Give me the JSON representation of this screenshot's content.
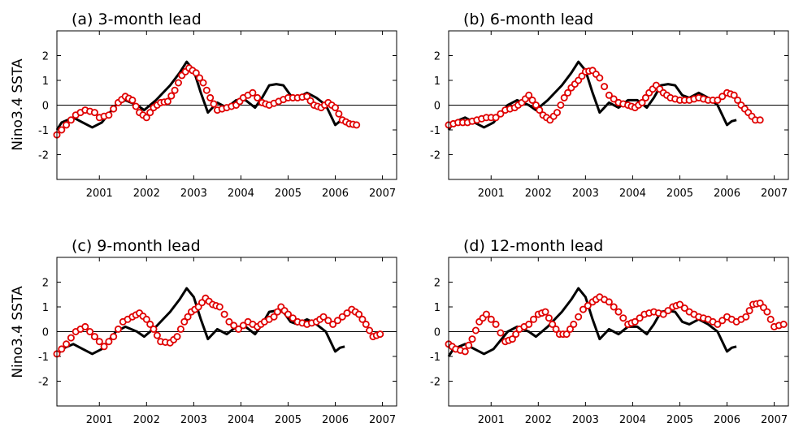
{
  "y_axis_label": "Nino3.4  SSTA",
  "colors": {
    "obs": "#000000",
    "pred": "#e00000"
  },
  "chart_data": [
    {
      "type": "line",
      "title": "(a) 3-month lead",
      "xlim": [
        2000.1,
        2007.3
      ],
      "ylim": [
        -3,
        3
      ],
      "xticks": [
        2001,
        2002,
        2003,
        2004,
        2005,
        2006,
        2007
      ],
      "xtick_labels": [
        "2001",
        "2002",
        "2003",
        "2004",
        "2005",
        "2006",
        "2007"
      ],
      "yticks": [
        -2,
        -1,
        0,
        1,
        2
      ],
      "ytick_labels": [
        "-2",
        "-1",
        "0",
        "1",
        "2"
      ],
      "observed": {
        "x": [
          2000.1,
          2000.2,
          2000.45,
          2000.65,
          2000.85,
          2001.05,
          2001.35,
          2001.55,
          2001.8,
          2001.95,
          2002.2,
          2002.5,
          2002.7,
          2002.85,
          2003.0,
          2003.15,
          2003.3,
          2003.5,
          2003.7,
          2003.9,
          2004.1,
          2004.3,
          2004.45,
          2004.6,
          2004.75,
          2004.9,
          2005.05,
          2005.2,
          2005.4,
          2005.6,
          2005.8,
          2006.0,
          2006.1,
          2006.2
        ],
        "y": [
          -1.0,
          -0.7,
          -0.5,
          -0.7,
          -0.9,
          -0.7,
          0.0,
          0.2,
          0.0,
          -0.2,
          0.2,
          0.8,
          1.3,
          1.75,
          1.4,
          0.5,
          -0.3,
          0.1,
          -0.1,
          0.2,
          0.2,
          -0.1,
          0.3,
          0.8,
          0.85,
          0.8,
          0.4,
          0.3,
          0.5,
          0.3,
          0.0,
          -0.8,
          -0.65,
          -0.6
        ]
      },
      "predicted": {
        "x": [
          2000.1,
          2000.3,
          2000.5,
          2000.7,
          2000.9,
          2001.0,
          2001.2,
          2001.4,
          2001.55,
          2001.7,
          2001.85,
          2002.0,
          2002.15,
          2002.3,
          2002.45,
          2002.6,
          2002.75,
          2002.9,
          2003.05,
          2003.2,
          2003.35,
          2003.5,
          2003.7,
          2003.9,
          2004.05,
          2004.25,
          2004.45,
          2004.6,
          2004.8,
          2005.0,
          2005.2,
          2005.4,
          2005.55,
          2005.7,
          2005.85,
          2006.0,
          2006.15,
          2006.3,
          2006.45
        ],
        "y": [
          -1.2,
          -0.8,
          -0.4,
          -0.2,
          -0.3,
          -0.5,
          -0.4,
          0.1,
          0.35,
          0.2,
          -0.3,
          -0.5,
          -0.1,
          0.1,
          0.15,
          0.6,
          1.2,
          1.5,
          1.3,
          0.9,
          0.3,
          -0.2,
          -0.1,
          0.0,
          0.3,
          0.5,
          0.1,
          0.0,
          0.15,
          0.3,
          0.3,
          0.35,
          0.0,
          -0.1,
          0.1,
          -0.1,
          -0.6,
          -0.75,
          -0.8
        ]
      }
    },
    {
      "type": "line",
      "title": "(b) 6-month lead",
      "xlim": [
        2000.1,
        2007.3
      ],
      "ylim": [
        -3,
        3
      ],
      "xticks": [
        2001,
        2002,
        2003,
        2004,
        2005,
        2006,
        2007
      ],
      "xtick_labels": [
        "2001",
        "2002",
        "2003",
        "2004",
        "2005",
        "2006",
        "2007"
      ],
      "yticks": [
        -2,
        -1,
        0,
        1,
        2
      ],
      "ytick_labels": [
        "-2",
        "-1",
        "0",
        "1",
        "2"
      ],
      "observed": {
        "x": [
          2000.1,
          2000.2,
          2000.45,
          2000.65,
          2000.85,
          2001.05,
          2001.35,
          2001.55,
          2001.8,
          2001.95,
          2002.2,
          2002.5,
          2002.7,
          2002.85,
          2003.0,
          2003.15,
          2003.3,
          2003.5,
          2003.7,
          2003.9,
          2004.1,
          2004.3,
          2004.45,
          2004.6,
          2004.75,
          2004.9,
          2005.05,
          2005.2,
          2005.4,
          2005.6,
          2005.8,
          2006.0,
          2006.1,
          2006.2
        ],
        "y": [
          -1.0,
          -0.7,
          -0.5,
          -0.7,
          -0.9,
          -0.7,
          0.0,
          0.2,
          0.0,
          -0.2,
          0.2,
          0.8,
          1.3,
          1.75,
          1.4,
          0.5,
          -0.3,
          0.1,
          -0.1,
          0.2,
          0.2,
          -0.1,
          0.3,
          0.8,
          0.85,
          0.8,
          0.4,
          0.3,
          0.5,
          0.3,
          0.0,
          -0.8,
          -0.65,
          -0.6
        ]
      },
      "predicted": {
        "x": [
          2000.1,
          2000.3,
          2000.5,
          2000.7,
          2000.9,
          2001.1,
          2001.3,
          2001.5,
          2001.65,
          2001.8,
          2001.95,
          2002.1,
          2002.25,
          2002.4,
          2002.55,
          2002.7,
          2002.85,
          2003.0,
          2003.15,
          2003.3,
          2003.5,
          2003.7,
          2003.9,
          2004.05,
          2004.2,
          2004.35,
          2004.5,
          2004.65,
          2004.8,
          2005.0,
          2005.2,
          2005.4,
          2005.6,
          2005.8,
          2006.0,
          2006.15,
          2006.3,
          2006.45,
          2006.6,
          2006.7
        ],
        "y": [
          -0.8,
          -0.7,
          -0.7,
          -0.6,
          -0.5,
          -0.5,
          -0.2,
          -0.1,
          0.1,
          0.4,
          0.0,
          -0.4,
          -0.6,
          -0.3,
          0.3,
          0.7,
          1.0,
          1.35,
          1.4,
          1.1,
          0.4,
          0.1,
          0.0,
          -0.1,
          0.1,
          0.5,
          0.8,
          0.5,
          0.3,
          0.2,
          0.2,
          0.3,
          0.2,
          0.2,
          0.5,
          0.4,
          0.0,
          -0.3,
          -0.6,
          -0.6
        ]
      }
    },
    {
      "type": "line",
      "title": "(c) 9-month lead",
      "xlim": [
        2000.1,
        2007.3
      ],
      "ylim": [
        -3,
        3
      ],
      "xticks": [
        2001,
        2002,
        2003,
        2004,
        2005,
        2006,
        2007
      ],
      "xtick_labels": [
        "2001",
        "2002",
        "2003",
        "2004",
        "2005",
        "2006",
        "2007"
      ],
      "yticks": [
        -2,
        -1,
        0,
        1,
        2
      ],
      "ytick_labels": [
        "-2",
        "-1",
        "0",
        "1",
        "2"
      ],
      "observed": {
        "x": [
          2000.1,
          2000.2,
          2000.45,
          2000.65,
          2000.85,
          2001.05,
          2001.35,
          2001.55,
          2001.8,
          2001.95,
          2002.2,
          2002.5,
          2002.7,
          2002.85,
          2003.0,
          2003.15,
          2003.3,
          2003.5,
          2003.7,
          2003.9,
          2004.1,
          2004.3,
          2004.45,
          2004.6,
          2004.75,
          2004.9,
          2005.05,
          2005.2,
          2005.4,
          2005.6,
          2005.8,
          2006.0,
          2006.1,
          2006.2
        ],
        "y": [
          -1.0,
          -0.7,
          -0.5,
          -0.7,
          -0.9,
          -0.7,
          0.0,
          0.2,
          0.0,
          -0.2,
          0.2,
          0.8,
          1.3,
          1.75,
          1.4,
          0.5,
          -0.3,
          0.1,
          -0.1,
          0.2,
          0.2,
          -0.1,
          0.3,
          0.8,
          0.85,
          0.8,
          0.4,
          0.3,
          0.5,
          0.3,
          0.0,
          -0.8,
          -0.65,
          -0.6
        ]
      },
      "predicted": {
        "x": [
          2000.1,
          2000.3,
          2000.5,
          2000.7,
          2000.9,
          2001.1,
          2001.3,
          2001.5,
          2001.7,
          2001.85,
          2002.0,
          2002.15,
          2002.3,
          2002.5,
          2002.65,
          2002.8,
          2002.95,
          2003.1,
          2003.25,
          2003.4,
          2003.55,
          2003.75,
          2003.95,
          2004.15,
          2004.35,
          2004.5,
          2004.7,
          2004.85,
          2005.0,
          2005.2,
          2005.4,
          2005.6,
          2005.75,
          2005.95,
          2006.15,
          2006.35,
          2006.5,
          2006.65,
          2006.8,
          2006.95
        ],
        "y": [
          -0.9,
          -0.5,
          0.0,
          0.2,
          -0.2,
          -0.6,
          -0.2,
          0.4,
          0.6,
          0.75,
          0.5,
          0.1,
          -0.4,
          -0.45,
          -0.2,
          0.4,
          0.8,
          1.0,
          1.35,
          1.1,
          1.0,
          0.4,
          0.1,
          0.4,
          0.2,
          0.4,
          0.6,
          1.0,
          0.7,
          0.4,
          0.3,
          0.4,
          0.6,
          0.3,
          0.6,
          0.9,
          0.7,
          0.3,
          -0.2,
          -0.1
        ]
      }
    },
    {
      "type": "line",
      "title": "(d) 12-month lead",
      "xlim": [
        2000.1,
        2007.3
      ],
      "ylim": [
        -3,
        3
      ],
      "xticks": [
        2001,
        2002,
        2003,
        2004,
        2005,
        2006,
        2007
      ],
      "xtick_labels": [
        "2001",
        "2002",
        "2003",
        "2004",
        "2005",
        "2006",
        "2007"
      ],
      "yticks": [
        -2,
        -1,
        0,
        1,
        2
      ],
      "ytick_labels": [
        "-2",
        "-1",
        "0",
        "1",
        "2"
      ],
      "observed": {
        "x": [
          2000.1,
          2000.2,
          2000.45,
          2000.65,
          2000.85,
          2001.05,
          2001.35,
          2001.55,
          2001.8,
          2001.95,
          2002.2,
          2002.5,
          2002.7,
          2002.85,
          2003.0,
          2003.15,
          2003.3,
          2003.5,
          2003.7,
          2003.9,
          2004.1,
          2004.3,
          2004.45,
          2004.6,
          2004.75,
          2004.9,
          2005.05,
          2005.2,
          2005.4,
          2005.6,
          2005.8,
          2006.0,
          2006.1,
          2006.2
        ],
        "y": [
          -1.0,
          -0.7,
          -0.5,
          -0.7,
          -0.9,
          -0.7,
          0.0,
          0.2,
          0.0,
          -0.2,
          0.2,
          0.8,
          1.3,
          1.75,
          1.4,
          0.5,
          -0.3,
          0.1,
          -0.1,
          0.2,
          0.2,
          -0.1,
          0.3,
          0.8,
          0.85,
          0.8,
          0.4,
          0.3,
          0.5,
          0.3,
          0.0,
          -0.8,
          -0.65,
          -0.6
        ]
      },
      "predicted": {
        "x": [
          2000.1,
          2000.25,
          2000.45,
          2000.6,
          2000.75,
          2000.9,
          2001.1,
          2001.3,
          2001.45,
          2001.6,
          2001.8,
          2002.0,
          2002.15,
          2002.3,
          2002.45,
          2002.6,
          2002.75,
          2002.95,
          2003.15,
          2003.3,
          2003.5,
          2003.7,
          2003.9,
          2004.05,
          2004.25,
          2004.45,
          2004.65,
          2004.85,
          2005.0,
          2005.2,
          2005.4,
          2005.6,
          2005.8,
          2006.0,
          2006.2,
          2006.4,
          2006.55,
          2006.7,
          2006.85,
          2007.0,
          2007.2
        ],
        "y": [
          -0.5,
          -0.7,
          -0.8,
          -0.3,
          0.4,
          0.7,
          0.3,
          -0.4,
          -0.3,
          0.1,
          0.3,
          0.7,
          0.8,
          0.3,
          -0.1,
          -0.1,
          0.3,
          0.9,
          1.2,
          1.4,
          1.2,
          0.8,
          0.3,
          0.4,
          0.7,
          0.8,
          0.7,
          1.0,
          1.1,
          0.8,
          0.6,
          0.5,
          0.3,
          0.6,
          0.4,
          0.6,
          1.1,
          1.15,
          0.8,
          0.2,
          0.3
        ]
      }
    }
  ]
}
